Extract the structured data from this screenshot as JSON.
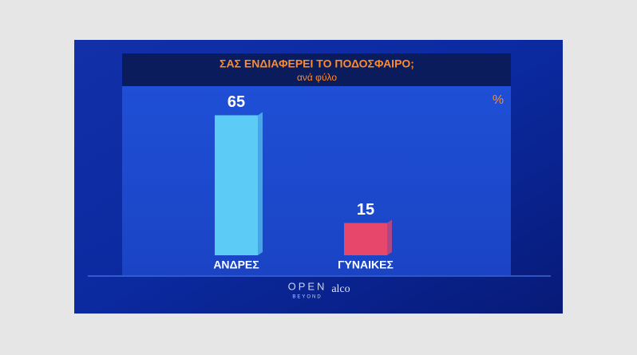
{
  "chart_data": {
    "type": "bar",
    "title": "ΣΑΣ ΕΝΔΙΑΦΕΡΕΙ ΤΟ ΠΟΔΟΣΦΑΙΡΟ;",
    "subtitle": "ανά φύλο",
    "unit_label": "%",
    "categories": [
      "ΑΝΔΡΕΣ",
      "ΓΥΝΑΙΚΕΣ"
    ],
    "values": [
      65,
      15
    ],
    "colors": [
      "#5ccbf6",
      "#e8476c"
    ],
    "logos": [
      "OPEN",
      "BEYOND",
      "alco"
    ]
  }
}
